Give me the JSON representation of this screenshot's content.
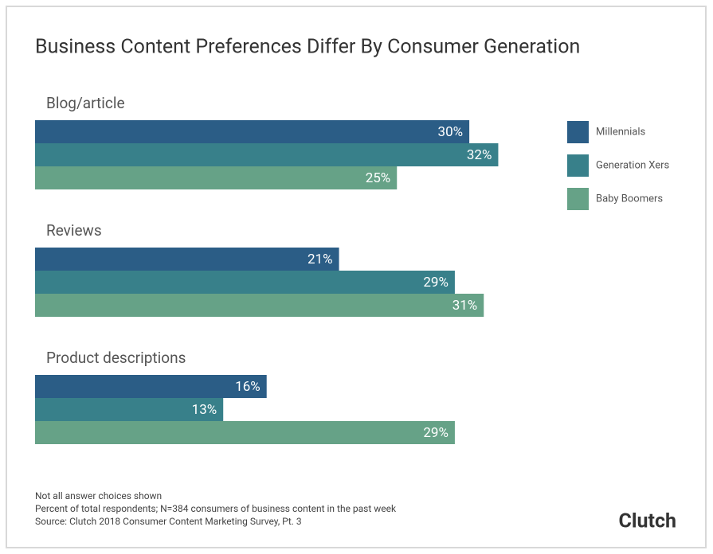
{
  "chart_data": {
    "type": "hbar",
    "title": "Business Content Preferences Differ By Consumer Generation",
    "categories": [
      "Blog/article",
      "Reviews",
      "Product descriptions"
    ],
    "series": [
      {
        "name": "Millennials",
        "color": "#2b5d86",
        "values": [
          30,
          21,
          16
        ],
        "value_labels": [
          "30%",
          "21%",
          "16%"
        ]
      },
      {
        "name": "Generation Xers",
        "color": "#38808a",
        "values": [
          32,
          29,
          13
        ],
        "value_labels": [
          "32%",
          "29%",
          "13%"
        ]
      },
      {
        "name": "Baby Boomers",
        "color": "#66a287",
        "values": [
          25,
          31,
          29
        ],
        "value_labels": [
          "25%",
          "31%",
          "29%"
        ]
      }
    ],
    "legend": "right",
    "notes": [
      "Not all answer choices shown",
      "Percent of total respondents; N=384 consumers of business content in the past week",
      "Source: Clutch 2018 Consumer Content Marketing Survey, Pt. 3"
    ],
    "logo": "Clutch"
  }
}
